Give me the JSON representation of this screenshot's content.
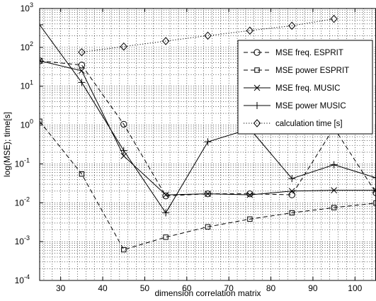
{
  "chart_data": {
    "type": "line",
    "title": "",
    "xlabel": "dimension correlation matrix",
    "ylabel": "log(MSE); time[s]",
    "xlim": [
      25,
      105
    ],
    "ylim": [
      0.0001,
      1000
    ],
    "yscale": "log",
    "grid": "major and minor, dotted",
    "legend_position": "right",
    "x_ticks": [
      "30",
      "40",
      "50",
      "60",
      "70",
      "80",
      "90",
      "100"
    ],
    "y_ticks": [
      "10^-4",
      "10^-3",
      "10^-2",
      "10^-1",
      "10^0",
      "10^1",
      "10^2",
      "10^3"
    ],
    "series": [
      {
        "name": "MSE freq. ESPRIT",
        "line": "dashed",
        "marker": "circle",
        "x": [
          25,
          35,
          45,
          55,
          65,
          75,
          85,
          95,
          105
        ],
        "y": [
          45,
          35,
          1.05,
          0.015,
          0.017,
          0.017,
          0.016,
          0.85,
          0.018
        ]
      },
      {
        "name": "MSE power ESPRIT",
        "line": "dashed",
        "marker": "square",
        "x": [
          25,
          35,
          45,
          55,
          65,
          75,
          85,
          95,
          105
        ],
        "y": [
          1.25,
          0.055,
          0.00062,
          0.0013,
          0.0024,
          0.0038,
          0.0055,
          0.0075,
          0.0098
        ]
      },
      {
        "name": "MSE freq. MUSIC",
        "line": "solid",
        "marker": "x",
        "x": [
          25,
          35,
          45,
          55,
          65,
          75,
          85,
          95,
          105
        ],
        "y": [
          45,
          25,
          0.16,
          0.016,
          0.017,
          0.016,
          0.02,
          0.021,
          0.021
        ]
      },
      {
        "name": "MSE power MUSIC",
        "line": "solid",
        "marker": "plus",
        "x": [
          25,
          35,
          45,
          55,
          65,
          75,
          85,
          95,
          105
        ],
        "y": [
          380,
          12.5,
          0.22,
          0.0055,
          0.37,
          0.8,
          0.042,
          0.095,
          0.044
        ]
      },
      {
        "name": "calculation time [s]",
        "line": "dotted",
        "marker": "diamond",
        "x": [
          35,
          45,
          55,
          65,
          75,
          85,
          95
        ],
        "y": [
          75,
          105,
          145,
          200,
          270,
          360,
          540
        ]
      }
    ]
  }
}
